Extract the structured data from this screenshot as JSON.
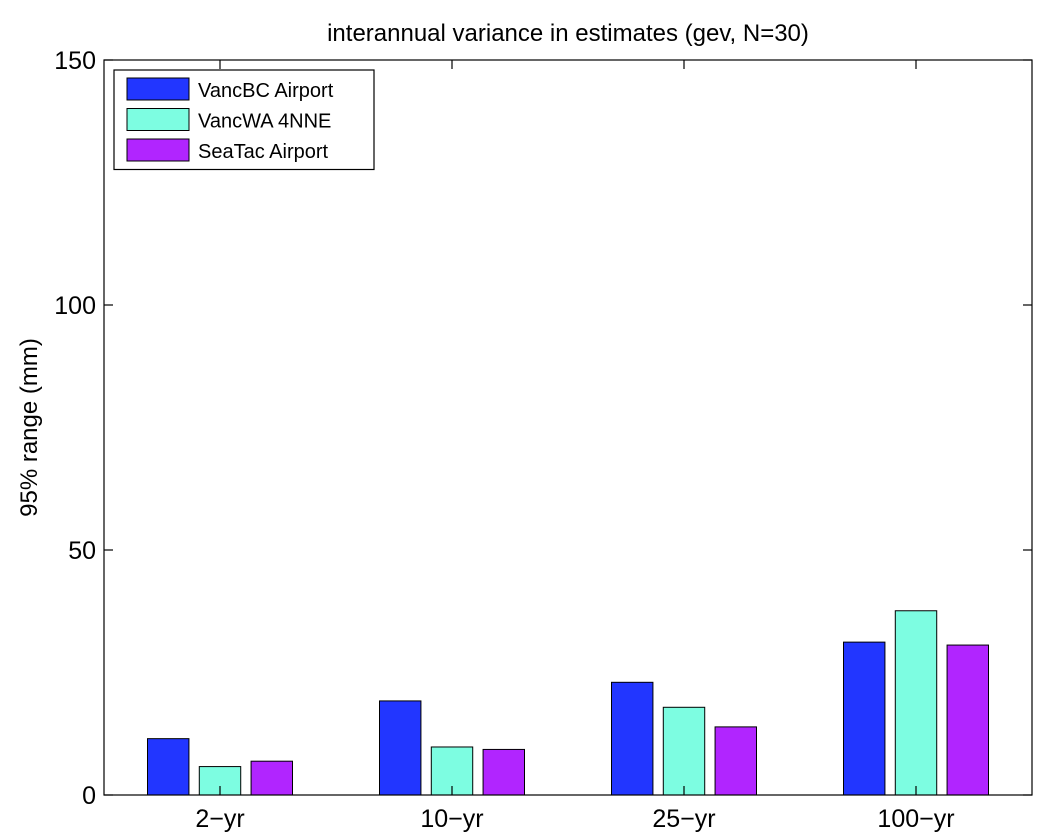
{
  "chart_data": {
    "type": "bar",
    "title": "interannual variance in estimates (gev, N=30)",
    "xlabel": "",
    "ylabel": "95% range (mm)",
    "categories": [
      "2−yr",
      "10−yr",
      "25−yr",
      "100−yr"
    ],
    "ylim": [
      0,
      150
    ],
    "yticks": [
      0,
      50,
      100,
      150
    ],
    "grid": false,
    "legend_position": "top-left",
    "series": [
      {
        "name": "VancBC Airport",
        "color": "#2236ff",
        "values": [
          11.5,
          19.2,
          23.0,
          31.2
        ]
      },
      {
        "name": "VancWA 4NNE",
        "color": "#7dfde1",
        "values": [
          5.8,
          9.8,
          17.9,
          37.6
        ]
      },
      {
        "name": "SeaTac Airport",
        "color": "#b125ff",
        "values": [
          6.9,
          9.3,
          13.9,
          30.6
        ]
      }
    ]
  }
}
